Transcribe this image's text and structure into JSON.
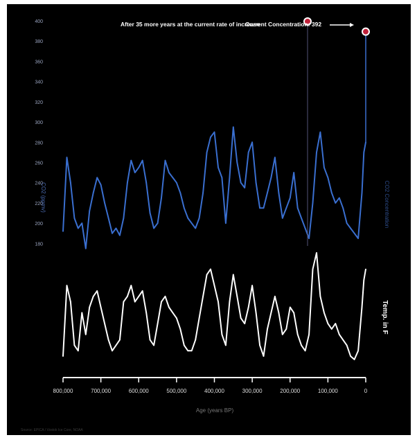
{
  "chart_data": {
    "type": "line",
    "xlabel": "Age (years BP)",
    "x_ticks": [
      "800,000",
      "700,000",
      "600,000",
      "500,000",
      "400,000",
      "300,000",
      "200,000",
      "100,000",
      "0"
    ],
    "xlim": [
      800000,
      0
    ],
    "y_ticks": [
      400,
      380,
      360,
      340,
      320,
      300,
      280,
      260,
      240,
      220,
      200,
      180
    ],
    "ylim": [
      170,
      400
    ],
    "ylabel": "CO2 (ppmv)",
    "right_labels": [
      "CO2 Concentration",
      "Temp. in F"
    ],
    "annotations": {
      "future": "After 35 more years at the current rate of increase",
      "current": "Current Concentration: 392"
    },
    "footnote": "Source: EPICA / Vostok Ice Core, NOAA",
    "series": [
      {
        "name": "CO2 Concentration",
        "color": "#3a6fd0",
        "x": [
          800000,
          790000,
          780000,
          770000,
          760000,
          750000,
          740000,
          730000,
          720000,
          710000,
          700000,
          690000,
          680000,
          670000,
          660000,
          650000,
          640000,
          630000,
          620000,
          610000,
          600000,
          590000,
          580000,
          570000,
          560000,
          550000,
          540000,
          530000,
          520000,
          510000,
          500000,
          490000,
          480000,
          470000,
          460000,
          450000,
          440000,
          430000,
          420000,
          410000,
          400000,
          390000,
          380000,
          370000,
          360000,
          350000,
          340000,
          330000,
          320000,
          310000,
          300000,
          290000,
          280000,
          270000,
          260000,
          250000,
          240000,
          230000,
          220000,
          210000,
          200000,
          190000,
          180000,
          170000,
          160000,
          150000,
          140000,
          130000,
          120000,
          110000,
          100000,
          90000,
          80000,
          70000,
          60000,
          50000,
          40000,
          30000,
          20000,
          10000,
          5000,
          0
        ],
        "values": [
          192,
          265,
          240,
          205,
          195,
          200,
          175,
          212,
          230,
          245,
          238,
          220,
          205,
          190,
          195,
          188,
          205,
          240,
          262,
          250,
          255,
          262,
          240,
          210,
          195,
          200,
          225,
          262,
          250,
          245,
          240,
          230,
          215,
          205,
          200,
          195,
          205,
          230,
          270,
          285,
          290,
          255,
          245,
          200,
          245,
          295,
          260,
          240,
          235,
          270,
          280,
          240,
          215,
          215,
          230,
          245,
          265,
          230,
          205,
          215,
          225,
          250,
          215,
          205,
          195,
          185,
          220,
          270,
          290,
          255,
          245,
          230,
          220,
          225,
          215,
          200,
          195,
          190,
          185,
          230,
          270,
          280
        ]
      },
      {
        "name": "Temp. in F",
        "color": "#ffffff",
        "x": [
          800000,
          790000,
          780000,
          770000,
          760000,
          750000,
          740000,
          730000,
          720000,
          710000,
          700000,
          690000,
          680000,
          670000,
          660000,
          650000,
          640000,
          630000,
          620000,
          610000,
          600000,
          590000,
          580000,
          570000,
          560000,
          550000,
          540000,
          530000,
          520000,
          510000,
          500000,
          490000,
          480000,
          470000,
          460000,
          450000,
          440000,
          430000,
          420000,
          410000,
          400000,
          390000,
          380000,
          370000,
          360000,
          350000,
          340000,
          330000,
          320000,
          310000,
          300000,
          290000,
          280000,
          270000,
          260000,
          250000,
          240000,
          230000,
          220000,
          210000,
          200000,
          190000,
          180000,
          170000,
          160000,
          150000,
          140000,
          130000,
          120000,
          110000,
          100000,
          90000,
          80000,
          70000,
          60000,
          50000,
          40000,
          30000,
          20000,
          10000,
          5000,
          0
        ],
        "values": [
          0.05,
          0.7,
          0.55,
          0.15,
          0.1,
          0.45,
          0.25,
          0.5,
          0.6,
          0.65,
          0.5,
          0.35,
          0.2,
          0.1,
          0.15,
          0.2,
          0.55,
          0.6,
          0.7,
          0.55,
          0.6,
          0.65,
          0.45,
          0.2,
          0.15,
          0.35,
          0.55,
          0.6,
          0.5,
          0.45,
          0.4,
          0.3,
          0.15,
          0.1,
          0.1,
          0.2,
          0.4,
          0.6,
          0.8,
          0.85,
          0.7,
          0.55,
          0.25,
          0.15,
          0.55,
          0.8,
          0.6,
          0.4,
          0.35,
          0.5,
          0.7,
          0.45,
          0.15,
          0.05,
          0.3,
          0.45,
          0.6,
          0.45,
          0.25,
          0.3,
          0.5,
          0.45,
          0.25,
          0.15,
          0.1,
          0.25,
          0.85,
          1.0,
          0.6,
          0.45,
          0.35,
          0.3,
          0.35,
          0.25,
          0.2,
          0.15,
          0.05,
          0.02,
          0.1,
          0.5,
          0.75,
          0.85
        ]
      }
    ],
    "highlight_points": [
      {
        "label": "future",
        "value": 392,
        "color": "#c0213a"
      },
      {
        "label": "current",
        "value": 392,
        "color": "#c0213a"
      }
    ]
  }
}
